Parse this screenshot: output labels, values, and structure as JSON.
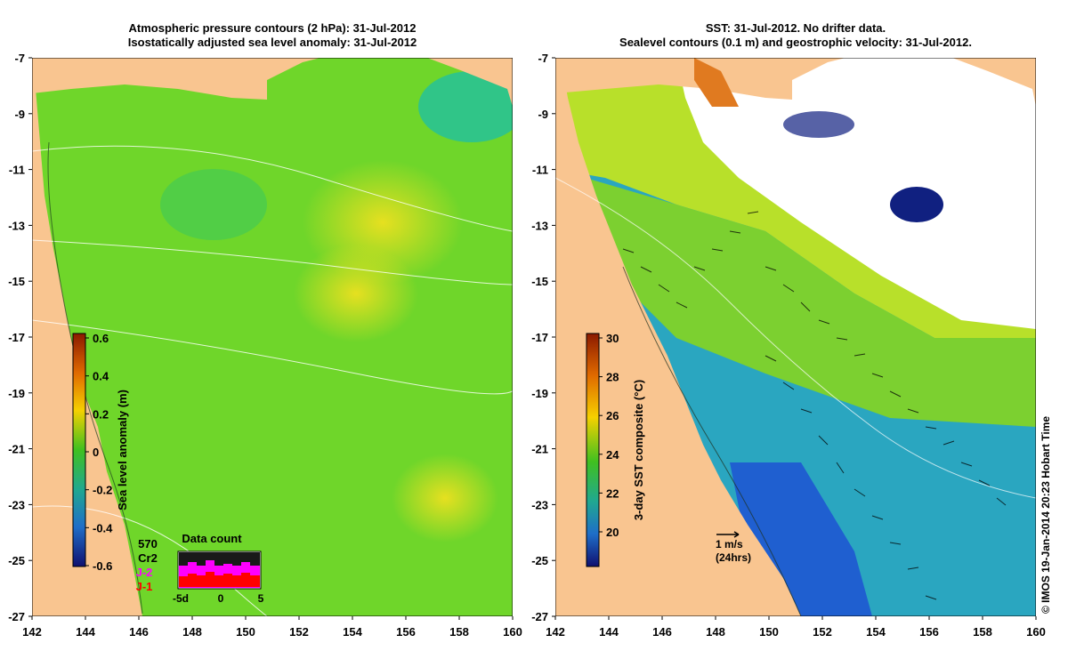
{
  "left_panel": {
    "title_line1": "Atmospheric pressure contours (2 hPa): 31-Jul-2012",
    "title_line2": "Isostatically adjusted sea level anomaly: 31-Jul-2012",
    "colorbar": {
      "label": "Sea level anomaly (m)",
      "ticks": [
        "0.6",
        "0.4",
        "0.2",
        "0",
        "-0.2",
        "-0.4",
        "-0.6"
      ]
    },
    "data_count": {
      "title": "Data count",
      "count": "570",
      "satellites": [
        {
          "label": "Cr2",
          "color": "#000000"
        },
        {
          "label": "J-2",
          "color": "#ff00ff"
        },
        {
          "label": "J-1",
          "color": "#ff0000"
        }
      ],
      "x_ticks": [
        "-5d",
        "0",
        "5"
      ]
    }
  },
  "right_panel": {
    "title_line1": "SST: 31-Jul-2012. No drifter data.",
    "title_line2": "Sealevel contours (0.1 m) and geostrophic velocity: 31-Jul-2012.",
    "colorbar": {
      "label": "3-day SST composite (°C)",
      "ticks": [
        "30",
        "28",
        "26",
        "24",
        "22",
        "20"
      ]
    },
    "velocity_key": {
      "line1": "1 m/s",
      "line2": "(24hrs)"
    }
  },
  "axes": {
    "lon_ticks": [
      "142",
      "144",
      "146",
      "148",
      "150",
      "152",
      "154",
      "156",
      "158",
      "160"
    ],
    "lat_ticks": [
      "-7",
      "-9",
      "-11",
      "-13",
      "-15",
      "-17",
      "-19",
      "-21",
      "-23",
      "-25",
      "-27"
    ]
  },
  "credit": "© IMOS 19-Jan-2014 20:23 Hobart Time",
  "colors": {
    "land": "#f9c590",
    "sla_field": "#6fd62a",
    "sst_warm": "#b8e02a",
    "sst_cool": "#1a9fd0",
    "cloud": "#ffffff"
  }
}
